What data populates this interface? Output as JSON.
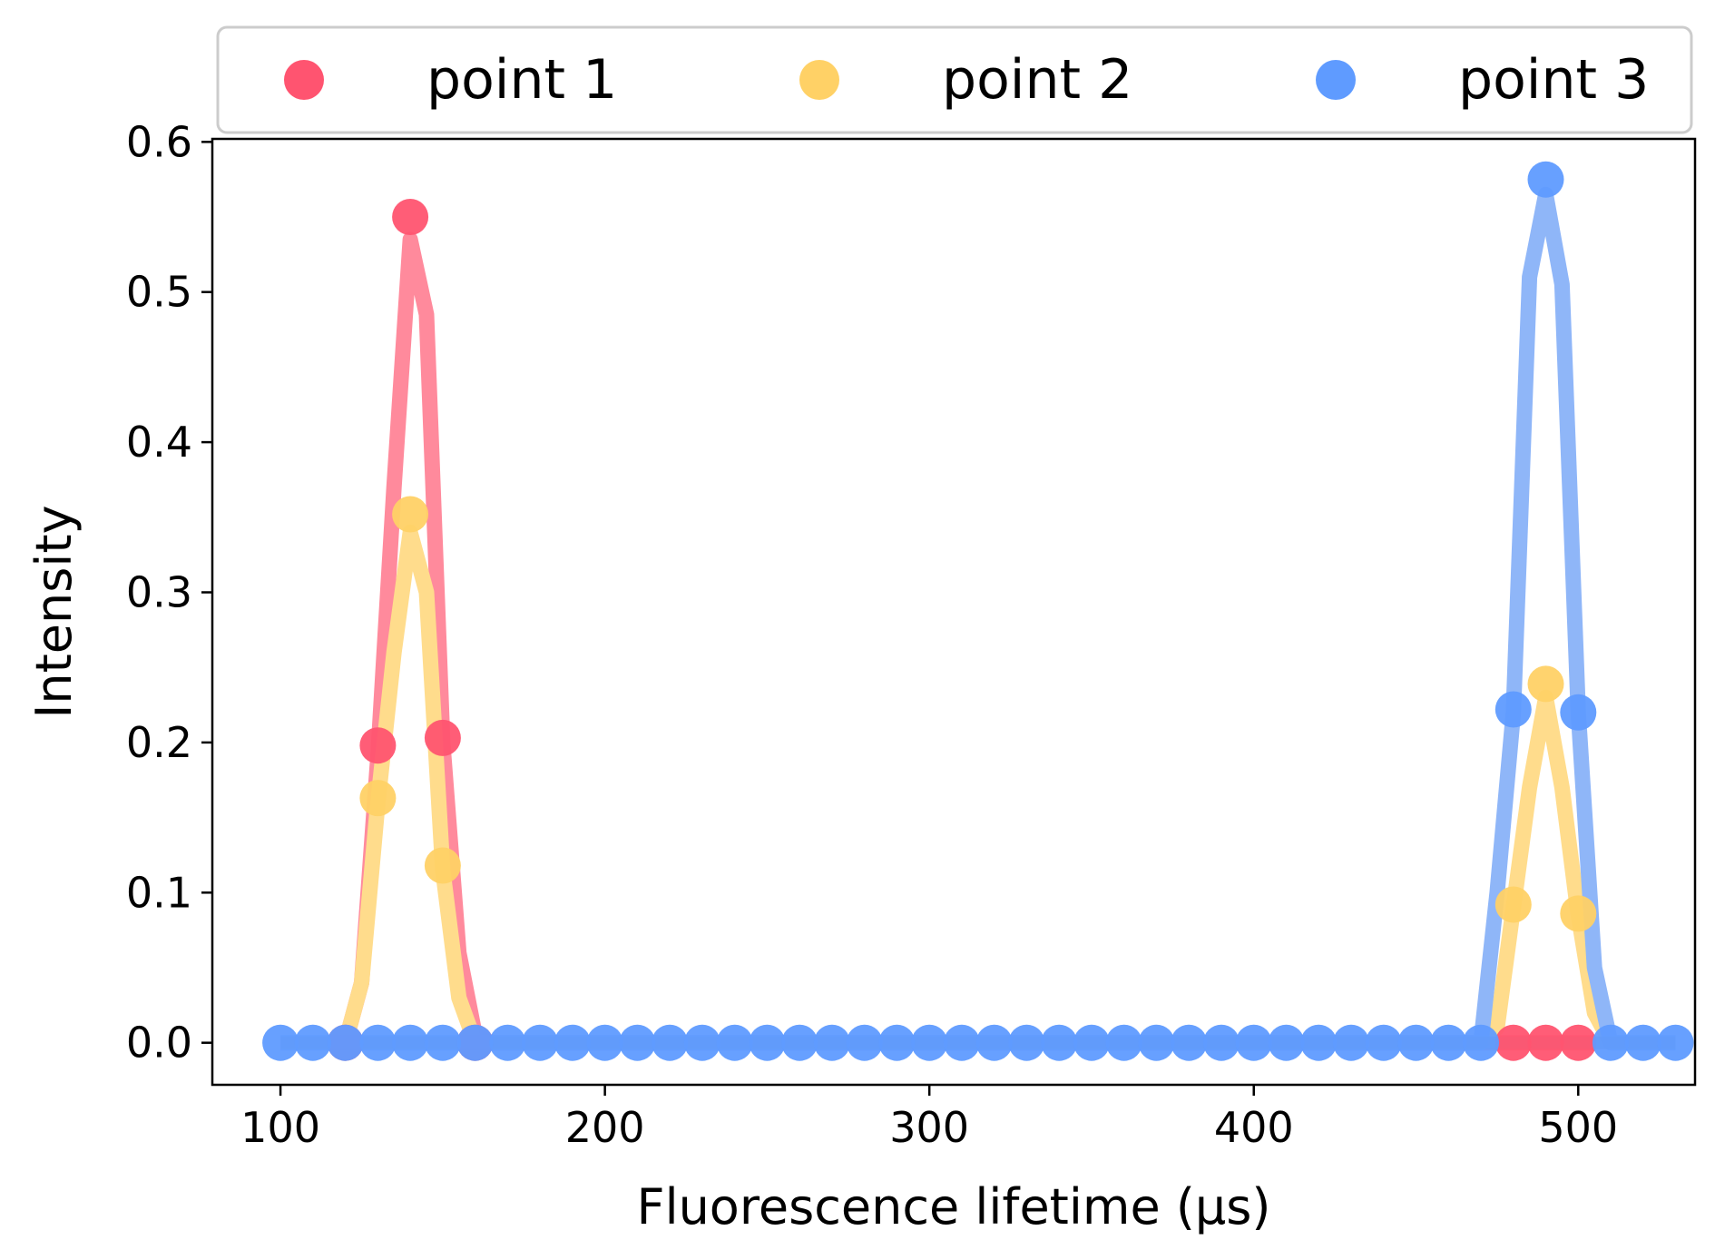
{
  "chart_data": {
    "type": "line",
    "title": "",
    "xlabel": "Fluorescence lifetime (μs)",
    "ylabel": "Intensity",
    "xlim": [
      79,
      536
    ],
    "ylim": [
      -0.028,
      0.602
    ],
    "xticks": [
      "100",
      "200",
      "300",
      "400",
      "500"
    ],
    "yticks": [
      "0.0",
      "0.1",
      "0.2",
      "0.3",
      "0.4",
      "0.5",
      "0.6"
    ],
    "grid": false,
    "legend_position": "top",
    "series": [
      {
        "name": "point 1",
        "color": "#ff5470",
        "line_color": "#ff8a9c",
        "points": [
          [
            120,
            0
          ],
          [
            130,
            0.198
          ],
          [
            140,
            0.55
          ],
          [
            150,
            0.203
          ],
          [
            160,
            0
          ],
          [
            480,
            0
          ],
          [
            490,
            0
          ],
          [
            500,
            0
          ]
        ],
        "curve": [
          [
            120,
            0
          ],
          [
            125,
            0.04
          ],
          [
            130,
            0.19
          ],
          [
            135,
            0.37
          ],
          [
            140,
            0.535
          ],
          [
            145,
            0.485
          ],
          [
            150,
            0.2
          ],
          [
            155,
            0.06
          ],
          [
            160,
            0.005
          ],
          [
            165,
            0
          ],
          [
            470,
            0
          ],
          [
            480,
            0
          ],
          [
            490,
            0
          ],
          [
            500,
            0
          ],
          [
            505,
            0
          ]
        ]
      },
      {
        "name": "point 2",
        "color": "#ffd166",
        "line_color": "#ffdc8c",
        "points": [
          [
            130,
            0.163
          ],
          [
            140,
            0.352
          ],
          [
            150,
            0.118
          ],
          [
            480,
            0.092
          ],
          [
            490,
            0.239
          ],
          [
            500,
            0.086
          ]
        ],
        "curve": [
          [
            120,
            0
          ],
          [
            125,
            0.04
          ],
          [
            130,
            0.16
          ],
          [
            135,
            0.26
          ],
          [
            140,
            0.34
          ],
          [
            145,
            0.3
          ],
          [
            150,
            0.115
          ],
          [
            155,
            0.03
          ],
          [
            160,
            0
          ],
          [
            470,
            0
          ],
          [
            475,
            0.01
          ],
          [
            480,
            0.09
          ],
          [
            485,
            0.17
          ],
          [
            490,
            0.23
          ],
          [
            495,
            0.17
          ],
          [
            500,
            0.085
          ],
          [
            505,
            0.02
          ],
          [
            510,
            0
          ]
        ]
      },
      {
        "name": "point 3",
        "color": "#5f9bff",
        "line_color": "#8fb6f8",
        "points": [
          [
            100,
            0
          ],
          [
            110,
            0
          ],
          [
            120,
            0
          ],
          [
            130,
            0
          ],
          [
            140,
            0
          ],
          [
            150,
            0
          ],
          [
            160,
            0
          ],
          [
            170,
            0
          ],
          [
            180,
            0
          ],
          [
            190,
            0
          ],
          [
            200,
            0
          ],
          [
            210,
            0
          ],
          [
            220,
            0
          ],
          [
            230,
            0
          ],
          [
            240,
            0
          ],
          [
            250,
            0
          ],
          [
            260,
            0
          ],
          [
            270,
            0
          ],
          [
            280,
            0
          ],
          [
            290,
            0
          ],
          [
            300,
            0
          ],
          [
            310,
            0
          ],
          [
            320,
            0
          ],
          [
            330,
            0
          ],
          [
            340,
            0
          ],
          [
            350,
            0
          ],
          [
            360,
            0
          ],
          [
            370,
            0
          ],
          [
            380,
            0
          ],
          [
            390,
            0
          ],
          [
            400,
            0
          ],
          [
            410,
            0
          ],
          [
            420,
            0
          ],
          [
            430,
            0
          ],
          [
            440,
            0
          ],
          [
            450,
            0
          ],
          [
            460,
            0
          ],
          [
            470,
            0
          ],
          [
            480,
            0.222
          ],
          [
            490,
            0.575
          ],
          [
            500,
            0.22
          ],
          [
            510,
            0
          ],
          [
            520,
            0
          ],
          [
            530,
            0
          ]
        ],
        "curve": [
          [
            100,
            0
          ],
          [
            470,
            0
          ],
          [
            475,
            0.1
          ],
          [
            480,
            0.22
          ],
          [
            485,
            0.51
          ],
          [
            490,
            0.565
          ],
          [
            495,
            0.505
          ],
          [
            500,
            0.22
          ],
          [
            505,
            0.05
          ],
          [
            510,
            0
          ],
          [
            530,
            0
          ]
        ]
      }
    ],
    "gray_baseline": {
      "color": "#8e9aa8",
      "range": [
        100,
        530
      ]
    }
  }
}
